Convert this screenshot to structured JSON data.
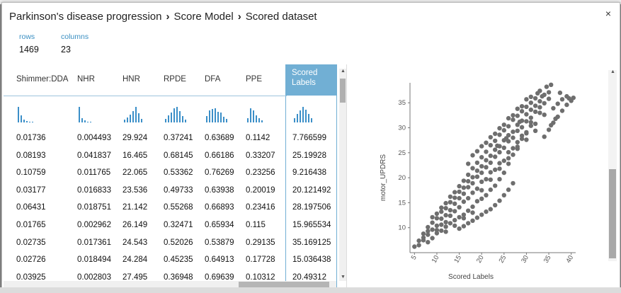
{
  "breadcrumb": {
    "items": [
      "Parkinson's disease progression",
      "Score Model",
      "Scored dataset"
    ],
    "separator": "›"
  },
  "stats": {
    "rows_label": "rows",
    "rows_value": "1469",
    "columns_label": "columns",
    "columns_value": "23"
  },
  "close_label": "×",
  "table": {
    "columns": [
      "Shimmer:DDA",
      "NHR",
      "HNR",
      "RPDE",
      "DFA",
      "PPE",
      "Scored Labels"
    ],
    "histograms": [
      [
        22,
        10,
        4,
        2,
        1,
        1,
        0
      ],
      [
        22,
        6,
        3,
        1,
        1,
        0
      ],
      [
        4,
        7,
        11,
        16,
        22,
        13,
        5
      ],
      [
        5,
        10,
        14,
        20,
        22,
        16,
        9,
        4
      ],
      [
        9,
        17,
        19,
        20,
        15,
        14,
        8,
        5
      ],
      [
        6,
        20,
        17,
        10,
        6,
        3
      ],
      [
        6,
        12,
        17,
        22,
        18,
        12,
        6
      ]
    ],
    "rows": [
      [
        "0.01736",
        "0.004493",
        "29.924",
        "0.37241",
        "0.63689",
        "0.1142",
        "7.766599"
      ],
      [
        "0.08193",
        "0.041837",
        "16.465",
        "0.68145",
        "0.66186",
        "0.33207",
        "25.19928"
      ],
      [
        "0.10759",
        "0.011765",
        "22.065",
        "0.53362",
        "0.76269",
        "0.23256",
        "9.216438"
      ],
      [
        "0.03177",
        "0.016833",
        "23.536",
        "0.49733",
        "0.63938",
        "0.20019",
        "20.121492"
      ],
      [
        "0.06431",
        "0.018751",
        "21.142",
        "0.55268",
        "0.66893",
        "0.23416",
        "28.197506"
      ],
      [
        "0.01765",
        "0.002962",
        "26.149",
        "0.32471",
        "0.65934",
        "0.115",
        "15.965534"
      ],
      [
        "0.02735",
        "0.017361",
        "24.543",
        "0.52026",
        "0.53879",
        "0.29135",
        "35.169125"
      ],
      [
        "0.02726",
        "0.018494",
        "24.284",
        "0.45235",
        "0.64913",
        "0.17728",
        "15.036438"
      ],
      [
        "0.03925",
        "0.002803",
        "27.495",
        "0.36948",
        "0.69639",
        "0.10312",
        "20.49312"
      ]
    ]
  },
  "chart_data": {
    "type": "scatter",
    "xlabel": "Scored Labels",
    "ylabel": "motor_UPDRS",
    "xlim": [
      4,
      41
    ],
    "ylim": [
      5,
      39
    ],
    "xticks": [
      5,
      10,
      15,
      20,
      25,
      30,
      35,
      40
    ],
    "yticks": [
      10,
      15,
      20,
      25,
      30,
      35
    ],
    "point_color": "#6e6e6e",
    "points": [
      [
        5,
        6.2
      ],
      [
        6,
        6.5
      ],
      [
        7,
        7.5
      ],
      [
        8,
        8.6
      ],
      [
        9,
        9.6
      ],
      [
        10,
        10.4
      ],
      [
        11,
        11.8
      ],
      [
        12,
        12.5
      ],
      [
        13,
        13.5
      ],
      [
        14,
        14.8
      ],
      [
        15,
        15.9
      ],
      [
        16,
        16.8
      ],
      [
        17,
        18.1
      ],
      [
        18,
        18.9
      ],
      [
        19,
        20.2
      ],
      [
        20,
        21.0
      ],
      [
        21,
        22.1
      ],
      [
        22,
        23.0
      ],
      [
        23,
        24.2
      ],
      [
        24,
        25.1
      ],
      [
        25,
        26.0
      ],
      [
        26,
        27.3
      ],
      [
        27,
        28.0
      ],
      [
        28,
        29.4
      ],
      [
        29,
        30.1
      ],
      [
        30,
        31.3
      ],
      [
        31,
        32.0
      ],
      [
        32,
        33.2
      ],
      [
        33,
        34.1
      ],
      [
        34,
        34.9
      ],
      [
        35,
        35.8
      ],
      [
        9,
        12.1
      ],
      [
        10,
        12.8
      ],
      [
        11,
        14.0
      ],
      [
        12,
        14.9
      ],
      [
        13,
        16.2
      ],
      [
        14,
        17.1
      ],
      [
        15,
        18.3
      ],
      [
        16,
        19.4
      ],
      [
        17,
        20.6
      ],
      [
        18,
        21.9
      ],
      [
        19,
        23.0
      ],
      [
        20,
        24.1
      ],
      [
        21,
        25.2
      ],
      [
        22,
        26.5
      ],
      [
        23,
        27.4
      ],
      [
        24,
        28.6
      ],
      [
        25,
        29.5
      ],
      [
        26,
        30.3
      ],
      [
        27,
        31.6
      ],
      [
        28,
        32.4
      ],
      [
        29,
        33.3
      ],
      [
        30,
        34.2
      ],
      [
        31,
        35.0
      ],
      [
        32,
        35.9
      ],
      [
        7,
        8.8
      ],
      [
        8,
        10.1
      ],
      [
        9,
        11.0
      ],
      [
        10,
        11.9
      ],
      [
        11,
        13.2
      ],
      [
        12,
        13.9
      ],
      [
        13,
        15.1
      ],
      [
        14,
        16.0
      ],
      [
        15,
        17.2
      ],
      [
        16,
        18.0
      ],
      [
        17,
        19.3
      ],
      [
        18,
        20.1
      ],
      [
        19,
        21.4
      ],
      [
        20,
        22.3
      ],
      [
        21,
        23.5
      ],
      [
        22,
        24.4
      ],
      [
        23,
        25.6
      ],
      [
        24,
        26.3
      ],
      [
        25,
        27.5
      ],
      [
        26,
        28.5
      ],
      [
        27,
        29.2
      ],
      [
        28,
        30.6
      ],
      [
        29,
        31.4
      ],
      [
        30,
        32.7
      ],
      [
        31,
        33.6
      ],
      [
        32,
        34.4
      ],
      [
        33,
        35.3
      ],
      [
        34,
        36.6
      ],
      [
        35,
        37.1
      ],
      [
        8,
        7.1
      ],
      [
        9,
        7.9
      ],
      [
        10,
        8.9
      ],
      [
        11,
        9.4
      ],
      [
        12,
        10.2
      ],
      [
        13,
        10.9
      ],
      [
        14,
        11.5
      ],
      [
        15,
        12.1
      ],
      [
        16,
        12.6
      ],
      [
        17,
        13.4
      ],
      [
        18,
        14.2
      ],
      [
        19,
        15.3
      ],
      [
        20,
        15.8
      ],
      [
        21,
        16.5
      ],
      [
        22,
        17.6
      ],
      [
        23,
        18.4
      ],
      [
        24,
        19.7
      ],
      [
        25,
        21.0
      ],
      [
        26,
        22.8
      ],
      [
        27,
        24.6
      ],
      [
        28,
        26.2
      ],
      [
        29,
        27.8
      ],
      [
        30,
        29.1
      ],
      [
        31,
        30.4
      ],
      [
        15,
        9.8
      ],
      [
        16,
        10.3
      ],
      [
        17,
        10.9
      ],
      [
        18,
        11.4
      ],
      [
        19,
        12.0
      ],
      [
        20,
        12.6
      ],
      [
        21,
        13.2
      ],
      [
        22,
        13.7
      ],
      [
        23,
        14.5
      ],
      [
        24,
        15.4
      ],
      [
        25,
        16.5
      ],
      [
        26,
        17.6
      ],
      [
        27,
        18.9
      ],
      [
        34,
        28.2
      ],
      [
        35,
        29.6
      ],
      [
        36,
        31.0
      ],
      [
        37,
        32.2
      ],
      [
        38,
        33.4
      ],
      [
        39,
        34.6
      ],
      [
        40,
        35.4
      ],
      [
        40.5,
        36.0
      ],
      [
        36,
        33.9
      ],
      [
        37,
        34.8
      ],
      [
        38,
        35.7
      ],
      [
        39,
        36.3
      ],
      [
        37.5,
        37.0
      ],
      [
        39.5,
        35.9
      ],
      [
        35.5,
        30.5
      ],
      [
        36.5,
        31.8
      ],
      [
        6,
        7.4
      ],
      [
        7,
        8.0
      ],
      [
        8,
        9.3
      ],
      [
        10,
        9.5
      ],
      [
        12,
        11.1
      ],
      [
        14,
        13.3
      ],
      [
        16,
        15.2
      ],
      [
        18,
        17.0
      ],
      [
        20,
        19.2
      ],
      [
        22,
        21.1
      ],
      [
        24,
        22.9
      ],
      [
        26,
        25.1
      ],
      [
        28,
        27.1
      ],
      [
        30,
        28.9
      ],
      [
        32,
        30.8
      ],
      [
        34,
        32.6
      ],
      [
        19,
        25.3
      ],
      [
        21,
        27.0
      ],
      [
        23,
        28.8
      ],
      [
        25,
        30.6
      ],
      [
        27,
        32.5
      ],
      [
        29,
        34.3
      ],
      [
        31,
        36.2
      ],
      [
        33,
        37.4
      ],
      [
        17,
        22.8
      ],
      [
        18,
        24.5
      ],
      [
        20,
        26.3
      ],
      [
        22,
        28.1
      ],
      [
        24,
        29.9
      ],
      [
        26,
        31.9
      ],
      [
        28,
        33.8
      ],
      [
        30,
        35.7
      ],
      [
        20,
        17.5
      ],
      [
        22,
        19.6
      ],
      [
        24,
        21.8
      ],
      [
        26,
        23.9
      ],
      [
        28,
        25.8
      ],
      [
        30,
        27.6
      ],
      [
        32,
        29.4
      ],
      [
        11,
        10.6
      ],
      [
        13,
        12.4
      ],
      [
        15,
        14.1
      ],
      [
        17,
        15.9
      ],
      [
        19,
        17.8
      ],
      [
        21,
        19.7
      ],
      [
        23,
        21.6
      ],
      [
        25,
        23.4
      ],
      [
        27,
        25.9
      ],
      [
        29,
        28.4
      ],
      [
        31,
        31.1
      ],
      [
        33,
        33.0
      ],
      [
        12,
        9.2
      ],
      [
        14,
        10.4
      ],
      [
        16,
        11.9
      ],
      [
        18,
        13.0
      ],
      [
        33.5,
        36.3
      ],
      [
        34.5,
        38.2
      ],
      [
        35.5,
        38.6
      ],
      [
        32.5,
        36.9
      ],
      [
        28.5,
        31.2
      ],
      [
        25.5,
        27.9
      ],
      [
        23.5,
        26.4
      ]
    ]
  }
}
